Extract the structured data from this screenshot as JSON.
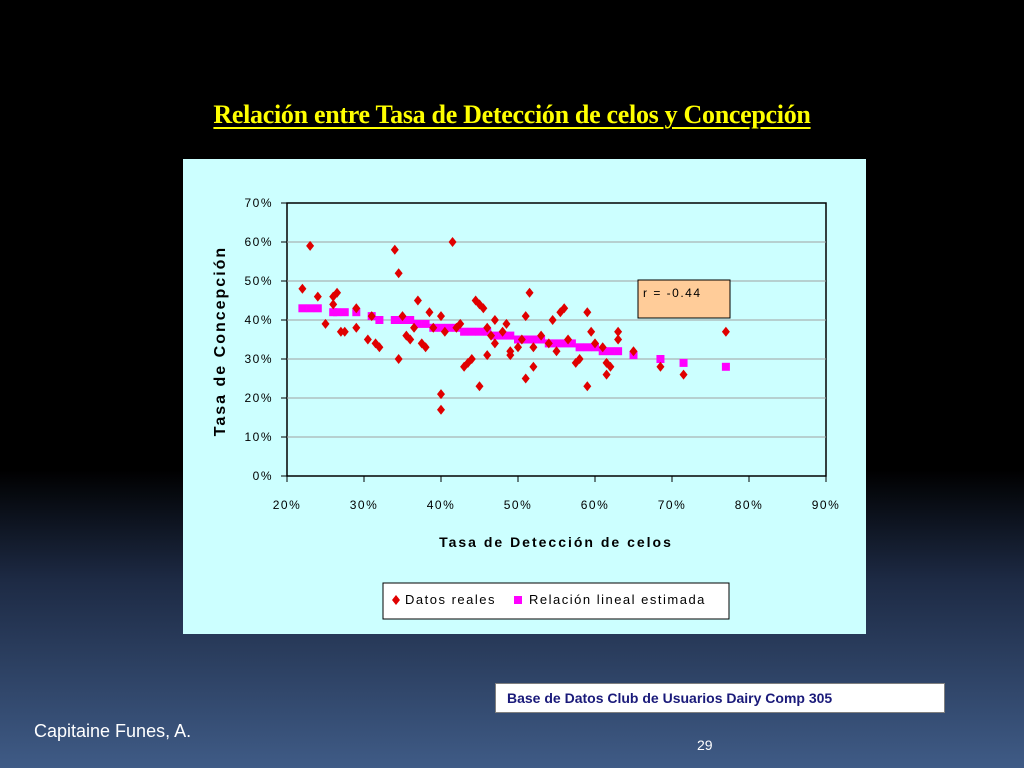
{
  "slide": {
    "title": "Relación entre Tasa de Detección de celos y Concepción",
    "source": "Base de Datos Club de Usuarios Dairy Comp 305",
    "author": "Capitaine Funes, A.",
    "page_number": "29"
  },
  "colors": {
    "title": "#ffff00",
    "panel": "#ccffff",
    "real_marker": "#e00000",
    "fit_marker": "#ff00ff",
    "annotation_bg": "#ffcc99"
  },
  "chart_data": {
    "type": "scatter",
    "title": "",
    "xlabel": "Tasa de Detección de celos",
    "ylabel": "Tasa de Concepción",
    "xlim": [
      0.2,
      0.9
    ],
    "ylim": [
      0.0,
      0.7
    ],
    "x_ticks": [
      0.2,
      0.3,
      0.4,
      0.5,
      0.6,
      0.7,
      0.8,
      0.9
    ],
    "y_ticks": [
      0.0,
      0.1,
      0.2,
      0.3,
      0.4,
      0.5,
      0.6,
      0.7
    ],
    "x_tick_labels": [
      "20%",
      "30%",
      "40%",
      "50%",
      "60%",
      "70%",
      "80%",
      "90%"
    ],
    "y_tick_labels": [
      "0%",
      "10%",
      "20%",
      "30%",
      "40%",
      "50%",
      "60%",
      "70%"
    ],
    "grid": "horizontal",
    "legend_position": "bottom",
    "annotation": "r = -0.44",
    "series": [
      {
        "name": "Datos reales",
        "marker": "diamond",
        "points": [
          [
            0.22,
            0.48
          ],
          [
            0.23,
            0.59
          ],
          [
            0.24,
            0.46
          ],
          [
            0.25,
            0.39
          ],
          [
            0.26,
            0.44
          ],
          [
            0.26,
            0.46
          ],
          [
            0.265,
            0.47
          ],
          [
            0.27,
            0.37
          ],
          [
            0.275,
            0.37
          ],
          [
            0.29,
            0.43
          ],
          [
            0.29,
            0.38
          ],
          [
            0.305,
            0.35
          ],
          [
            0.31,
            0.41
          ],
          [
            0.315,
            0.34
          ],
          [
            0.32,
            0.33
          ],
          [
            0.34,
            0.58
          ],
          [
            0.345,
            0.52
          ],
          [
            0.345,
            0.3
          ],
          [
            0.35,
            0.41
          ],
          [
            0.355,
            0.36
          ],
          [
            0.36,
            0.35
          ],
          [
            0.365,
            0.38
          ],
          [
            0.37,
            0.45
          ],
          [
            0.375,
            0.34
          ],
          [
            0.38,
            0.33
          ],
          [
            0.385,
            0.42
          ],
          [
            0.39,
            0.38
          ],
          [
            0.4,
            0.21
          ],
          [
            0.4,
            0.17
          ],
          [
            0.4,
            0.41
          ],
          [
            0.405,
            0.37
          ],
          [
            0.415,
            0.6
          ],
          [
            0.42,
            0.38
          ],
          [
            0.425,
            0.39
          ],
          [
            0.43,
            0.28
          ],
          [
            0.435,
            0.29
          ],
          [
            0.44,
            0.3
          ],
          [
            0.445,
            0.45
          ],
          [
            0.45,
            0.44
          ],
          [
            0.45,
            0.23
          ],
          [
            0.455,
            0.43
          ],
          [
            0.46,
            0.31
          ],
          [
            0.46,
            0.38
          ],
          [
            0.465,
            0.36
          ],
          [
            0.47,
            0.34
          ],
          [
            0.47,
            0.4
          ],
          [
            0.48,
            0.37
          ],
          [
            0.485,
            0.39
          ],
          [
            0.49,
            0.32
          ],
          [
            0.49,
            0.31
          ],
          [
            0.5,
            0.33
          ],
          [
            0.505,
            0.35
          ],
          [
            0.51,
            0.25
          ],
          [
            0.51,
            0.41
          ],
          [
            0.515,
            0.47
          ],
          [
            0.52,
            0.28
          ],
          [
            0.52,
            0.33
          ],
          [
            0.53,
            0.36
          ],
          [
            0.54,
            0.34
          ],
          [
            0.545,
            0.4
          ],
          [
            0.55,
            0.32
          ],
          [
            0.555,
            0.42
          ],
          [
            0.56,
            0.43
          ],
          [
            0.565,
            0.35
          ],
          [
            0.575,
            0.29
          ],
          [
            0.58,
            0.3
          ],
          [
            0.59,
            0.42
          ],
          [
            0.59,
            0.23
          ],
          [
            0.595,
            0.37
          ],
          [
            0.6,
            0.34
          ],
          [
            0.61,
            0.33
          ],
          [
            0.615,
            0.29
          ],
          [
            0.615,
            0.26
          ],
          [
            0.62,
            0.28
          ],
          [
            0.63,
            0.35
          ],
          [
            0.63,
            0.37
          ],
          [
            0.65,
            0.32
          ],
          [
            0.685,
            0.28
          ],
          [
            0.715,
            0.26
          ],
          [
            0.77,
            0.37
          ]
        ]
      },
      {
        "name": "Relación lineal estimada",
        "marker": "square",
        "points": [
          [
            0.22,
            0.43
          ],
          [
            0.23,
            0.43
          ],
          [
            0.24,
            0.43
          ],
          [
            0.26,
            0.42
          ],
          [
            0.265,
            0.42
          ],
          [
            0.275,
            0.42
          ],
          [
            0.29,
            0.42
          ],
          [
            0.31,
            0.41
          ],
          [
            0.32,
            0.4
          ],
          [
            0.34,
            0.4
          ],
          [
            0.35,
            0.4
          ],
          [
            0.36,
            0.4
          ],
          [
            0.37,
            0.39
          ],
          [
            0.38,
            0.39
          ],
          [
            0.39,
            0.38
          ],
          [
            0.4,
            0.38
          ],
          [
            0.41,
            0.38
          ],
          [
            0.42,
            0.38
          ],
          [
            0.43,
            0.37
          ],
          [
            0.44,
            0.37
          ],
          [
            0.45,
            0.37
          ],
          [
            0.46,
            0.37
          ],
          [
            0.47,
            0.36
          ],
          [
            0.48,
            0.36
          ],
          [
            0.49,
            0.36
          ],
          [
            0.5,
            0.35
          ],
          [
            0.51,
            0.35
          ],
          [
            0.52,
            0.35
          ],
          [
            0.53,
            0.35
          ],
          [
            0.54,
            0.34
          ],
          [
            0.55,
            0.34
          ],
          [
            0.56,
            0.34
          ],
          [
            0.57,
            0.34
          ],
          [
            0.58,
            0.33
          ],
          [
            0.59,
            0.33
          ],
          [
            0.6,
            0.33
          ],
          [
            0.61,
            0.32
          ],
          [
            0.62,
            0.32
          ],
          [
            0.63,
            0.32
          ],
          [
            0.65,
            0.31
          ],
          [
            0.685,
            0.3
          ],
          [
            0.715,
            0.29
          ],
          [
            0.77,
            0.28
          ]
        ]
      }
    ]
  }
}
